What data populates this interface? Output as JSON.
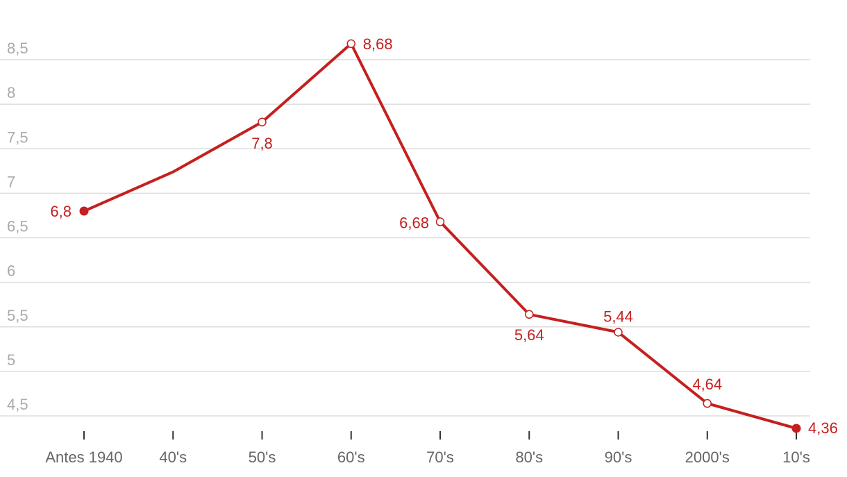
{
  "chart_data": {
    "type": "line",
    "title": "",
    "xlabel": "",
    "ylabel": "",
    "ylim": [
      4.2,
      8.8
    ],
    "yticks": [
      4.5,
      5,
      5.5,
      6,
      6.5,
      7,
      7.5,
      8,
      8.5
    ],
    "ytick_labels": [
      "4,5",
      "5",
      "5,5",
      "6",
      "6,5",
      "7",
      "7,5",
      "8",
      "8,5"
    ],
    "grid": true,
    "categories": [
      "Antes 1940",
      "40's",
      "50's",
      "60's",
      "70's",
      "80's",
      "90's",
      "2000's",
      "10's"
    ],
    "series": [
      {
        "values": [
          6.8,
          7.24,
          7.8,
          8.68,
          6.68,
          5.64,
          5.44,
          4.64,
          4.36
        ],
        "labels": [
          "6,8",
          "",
          "7,8",
          "8,68",
          "6,68",
          "5,64",
          "5,44",
          "4,64",
          "4,36"
        ],
        "markers": [
          "filled",
          "none",
          "open",
          "open",
          "open",
          "open",
          "open",
          "open",
          "filled"
        ]
      }
    ],
    "colors": {
      "line": "#c4201f",
      "grid": "#dddddd",
      "ytick": "#aaaaaa",
      "xtick": "#666666"
    }
  }
}
